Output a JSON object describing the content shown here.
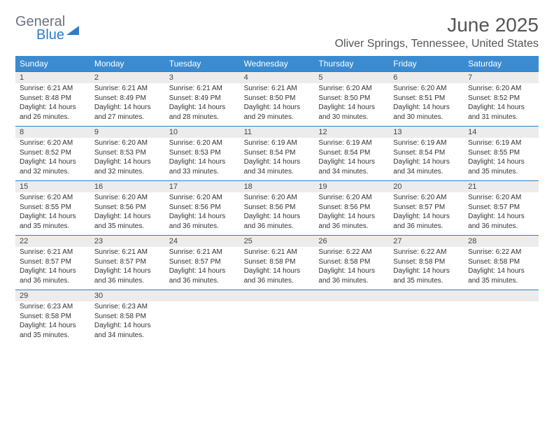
{
  "logo": {
    "word1": "General",
    "word2": "Blue"
  },
  "title": "June 2025",
  "location": "Oliver Springs, Tennessee, United States",
  "styling": {
    "header_bg": "#3b8bd0",
    "header_text": "#ffffff",
    "daynum_bg": "#ececec",
    "row_border": "#2f7dc4",
    "body_font_size": 10,
    "head_font_size": 12,
    "title_font_size": 28,
    "cols": 7
  },
  "weekdays": [
    "Sunday",
    "Monday",
    "Tuesday",
    "Wednesday",
    "Thursday",
    "Friday",
    "Saturday"
  ],
  "days": [
    {
      "n": "1",
      "sr": "6:21 AM",
      "ss": "8:48 PM",
      "dl": "14 hours and 26 minutes."
    },
    {
      "n": "2",
      "sr": "6:21 AM",
      "ss": "8:49 PM",
      "dl": "14 hours and 27 minutes."
    },
    {
      "n": "3",
      "sr": "6:21 AM",
      "ss": "8:49 PM",
      "dl": "14 hours and 28 minutes."
    },
    {
      "n": "4",
      "sr": "6:21 AM",
      "ss": "8:50 PM",
      "dl": "14 hours and 29 minutes."
    },
    {
      "n": "5",
      "sr": "6:20 AM",
      "ss": "8:50 PM",
      "dl": "14 hours and 30 minutes."
    },
    {
      "n": "6",
      "sr": "6:20 AM",
      "ss": "8:51 PM",
      "dl": "14 hours and 30 minutes."
    },
    {
      "n": "7",
      "sr": "6:20 AM",
      "ss": "8:52 PM",
      "dl": "14 hours and 31 minutes."
    },
    {
      "n": "8",
      "sr": "6:20 AM",
      "ss": "8:52 PM",
      "dl": "14 hours and 32 minutes."
    },
    {
      "n": "9",
      "sr": "6:20 AM",
      "ss": "8:53 PM",
      "dl": "14 hours and 32 minutes."
    },
    {
      "n": "10",
      "sr": "6:20 AM",
      "ss": "8:53 PM",
      "dl": "14 hours and 33 minutes."
    },
    {
      "n": "11",
      "sr": "6:19 AM",
      "ss": "8:54 PM",
      "dl": "14 hours and 34 minutes."
    },
    {
      "n": "12",
      "sr": "6:19 AM",
      "ss": "8:54 PM",
      "dl": "14 hours and 34 minutes."
    },
    {
      "n": "13",
      "sr": "6:19 AM",
      "ss": "8:54 PM",
      "dl": "14 hours and 34 minutes."
    },
    {
      "n": "14",
      "sr": "6:19 AM",
      "ss": "8:55 PM",
      "dl": "14 hours and 35 minutes."
    },
    {
      "n": "15",
      "sr": "6:20 AM",
      "ss": "8:55 PM",
      "dl": "14 hours and 35 minutes."
    },
    {
      "n": "16",
      "sr": "6:20 AM",
      "ss": "8:56 PM",
      "dl": "14 hours and 35 minutes."
    },
    {
      "n": "17",
      "sr": "6:20 AM",
      "ss": "8:56 PM",
      "dl": "14 hours and 36 minutes."
    },
    {
      "n": "18",
      "sr": "6:20 AM",
      "ss": "8:56 PM",
      "dl": "14 hours and 36 minutes."
    },
    {
      "n": "19",
      "sr": "6:20 AM",
      "ss": "8:56 PM",
      "dl": "14 hours and 36 minutes."
    },
    {
      "n": "20",
      "sr": "6:20 AM",
      "ss": "8:57 PM",
      "dl": "14 hours and 36 minutes."
    },
    {
      "n": "21",
      "sr": "6:20 AM",
      "ss": "8:57 PM",
      "dl": "14 hours and 36 minutes."
    },
    {
      "n": "22",
      "sr": "6:21 AM",
      "ss": "8:57 PM",
      "dl": "14 hours and 36 minutes."
    },
    {
      "n": "23",
      "sr": "6:21 AM",
      "ss": "8:57 PM",
      "dl": "14 hours and 36 minutes."
    },
    {
      "n": "24",
      "sr": "6:21 AM",
      "ss": "8:57 PM",
      "dl": "14 hours and 36 minutes."
    },
    {
      "n": "25",
      "sr": "6:21 AM",
      "ss": "8:58 PM",
      "dl": "14 hours and 36 minutes."
    },
    {
      "n": "26",
      "sr": "6:22 AM",
      "ss": "8:58 PM",
      "dl": "14 hours and 36 minutes."
    },
    {
      "n": "27",
      "sr": "6:22 AM",
      "ss": "8:58 PM",
      "dl": "14 hours and 35 minutes."
    },
    {
      "n": "28",
      "sr": "6:22 AM",
      "ss": "8:58 PM",
      "dl": "14 hours and 35 minutes."
    },
    {
      "n": "29",
      "sr": "6:23 AM",
      "ss": "8:58 PM",
      "dl": "14 hours and 35 minutes."
    },
    {
      "n": "30",
      "sr": "6:23 AM",
      "ss": "8:58 PM",
      "dl": "14 hours and 34 minutes."
    }
  ],
  "labels": {
    "sunrise": "Sunrise:",
    "sunset": "Sunset:",
    "daylight": "Daylight:"
  }
}
